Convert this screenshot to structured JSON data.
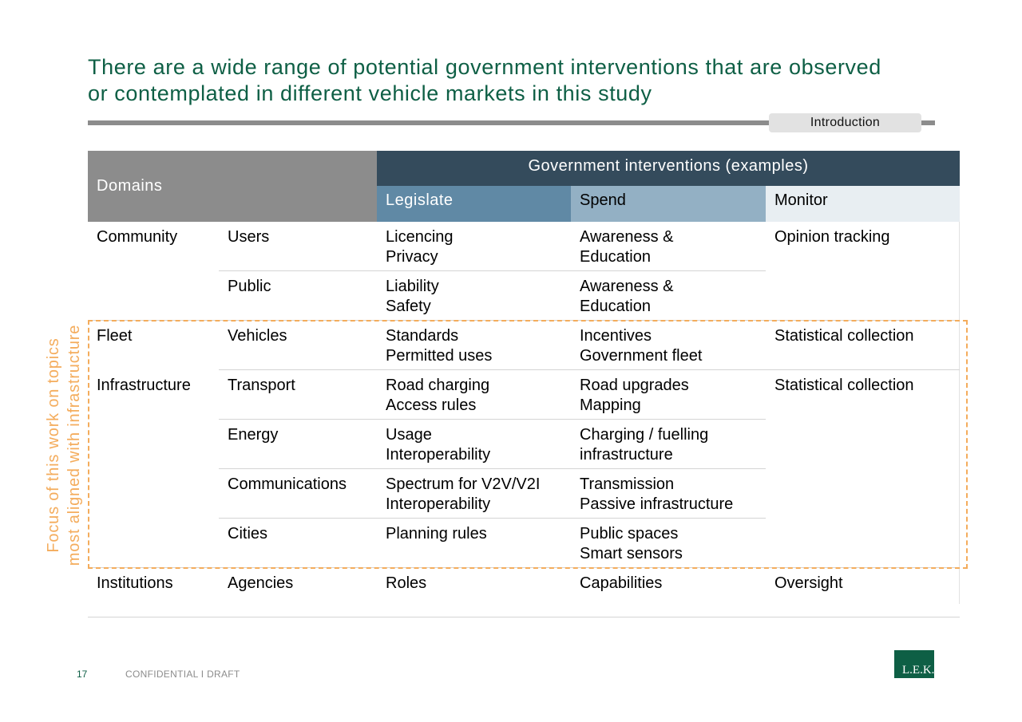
{
  "title": {
    "line1": "There are a wide range of potential government interventions that are observed",
    "line2": "or contemplated in different vehicle markets in this study"
  },
  "section_tag": "Introduction",
  "table": {
    "domains_header": "Domains",
    "gov_header": "Government interventions (examples)",
    "legislate_header": "Legislate",
    "spend_header": "Spend",
    "monitor_header": "Monitor",
    "rows": [
      {
        "domain": "Community",
        "sub": "Users",
        "legislate": [
          "Licencing",
          "Privacy"
        ],
        "spend": [
          "Awareness &",
          "Education"
        ],
        "monitor": "Opinion tracking"
      },
      {
        "domain": "",
        "sub": "Public",
        "legislate": [
          "Liability",
          "Safety"
        ],
        "spend": [
          "Awareness &",
          "Education"
        ],
        "monitor": ""
      },
      {
        "domain": "Fleet",
        "sub": "Vehicles",
        "legislate": [
          "Standards",
          "Permitted uses"
        ],
        "spend": [
          "Incentives",
          "Government fleet"
        ],
        "monitor": "Statistical collection"
      },
      {
        "domain": "Infrastructure",
        "sub": "Transport",
        "legislate": [
          "Road charging",
          "Access rules"
        ],
        "spend": [
          "Road upgrades",
          "Mapping"
        ],
        "monitor": "Statistical collection"
      },
      {
        "domain": "",
        "sub": "Energy",
        "legislate": [
          "Usage",
          "Interoperability"
        ],
        "spend": [
          "Charging / fuelling",
          "infrastructure"
        ],
        "monitor": ""
      },
      {
        "domain": "",
        "sub": "Communications",
        "legislate": [
          "Spectrum for V2V/V2I",
          "Interoperability"
        ],
        "spend": [
          "Transmission",
          "Passive infrastructure"
        ],
        "monitor": ""
      },
      {
        "domain": "",
        "sub": "Cities",
        "legislate": [
          "Planning rules",
          ""
        ],
        "spend": [
          "Public spaces",
          "Smart sensors"
        ],
        "monitor": ""
      },
      {
        "domain": "Institutions",
        "sub": "Agencies",
        "legislate": [
          "Roles",
          ""
        ],
        "spend": [
          "Capabilities",
          ""
        ],
        "monitor": "Oversight"
      }
    ]
  },
  "focus": {
    "line1": "Focus of this work on topics",
    "line2": "most aligned with infrastructure"
  },
  "footer": {
    "page_number": "17",
    "label": "CONFIDENTIAL I  DRAFT",
    "logo_text": "L.E.K."
  }
}
